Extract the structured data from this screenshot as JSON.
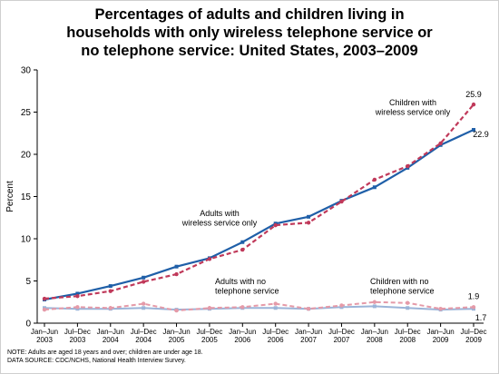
{
  "chart_data": {
    "type": "line",
    "title_lines": [
      "Percentages of adults and children living in",
      "households with only wireless telephone service or",
      "no telephone service: United States, 2003–2009"
    ],
    "ylabel": "Percent",
    "xlabel": "",
    "ylim": [
      0,
      30
    ],
    "yticks": [
      0,
      5,
      10,
      15,
      20,
      25,
      30
    ],
    "grid": false,
    "categories": [
      [
        "Jan–Jun",
        "2003"
      ],
      [
        "Jul–Dec",
        "2003"
      ],
      [
        "Jan–Jun",
        "2004"
      ],
      [
        "Jul–Dec",
        "2004"
      ],
      [
        "Jan–Jun",
        "2005"
      ],
      [
        "Jul–Dec",
        "2005"
      ],
      [
        "Jan–Jun",
        "2006"
      ],
      [
        "Jul–Dec",
        "2006"
      ],
      [
        "Jan–Jun",
        "2007"
      ],
      [
        "Jul–Dec",
        "2007"
      ],
      [
        "Jan–Jun",
        "2008"
      ],
      [
        "Jul–Dec",
        "2008"
      ],
      [
        "Jan–Jun",
        "2009"
      ],
      [
        "Jul–Dec",
        "2009"
      ]
    ],
    "series": [
      {
        "label_lines": [
          "Adults with",
          "wireless service only"
        ],
        "color": "#1f5fa8",
        "dash": false,
        "values": [
          2.8,
          3.5,
          4.4,
          5.4,
          6.7,
          7.7,
          9.6,
          11.8,
          12.6,
          14.5,
          16.1,
          18.4,
          21.1,
          22.9
        ],
        "end_label": "22.9"
      },
      {
        "label_lines": [
          "Children with",
          "wireless service only"
        ],
        "color": "#c0395a",
        "dash": true,
        "values": [
          2.9,
          3.2,
          3.8,
          4.9,
          5.8,
          7.6,
          8.7,
          11.6,
          11.9,
          14.4,
          17.0,
          18.6,
          21.3,
          25.9
        ],
        "end_label": "25.9"
      },
      {
        "label_lines": [
          "Adults with no",
          "telephone service"
        ],
        "color": "#9bb4d8",
        "dash": false,
        "values": [
          1.8,
          1.7,
          1.7,
          1.8,
          1.6,
          1.7,
          1.8,
          1.8,
          1.7,
          1.9,
          2.0,
          1.8,
          1.6,
          1.7
        ],
        "end_label": "1.7"
      },
      {
        "label_lines": [
          "Children with no",
          "telephone service"
        ],
        "color": "#e59aa8",
        "dash": true,
        "values": [
          1.6,
          1.9,
          1.8,
          2.3,
          1.5,
          1.8,
          1.9,
          2.3,
          1.7,
          2.1,
          2.5,
          2.4,
          1.7,
          1.9
        ],
        "end_label": "1.9"
      }
    ],
    "notes": [
      "NOTE: Adults are aged 18 years and over; children are under age 18.",
      "DATA SOURCE: CDC/NCHS, National Health Interview Survey."
    ]
  }
}
